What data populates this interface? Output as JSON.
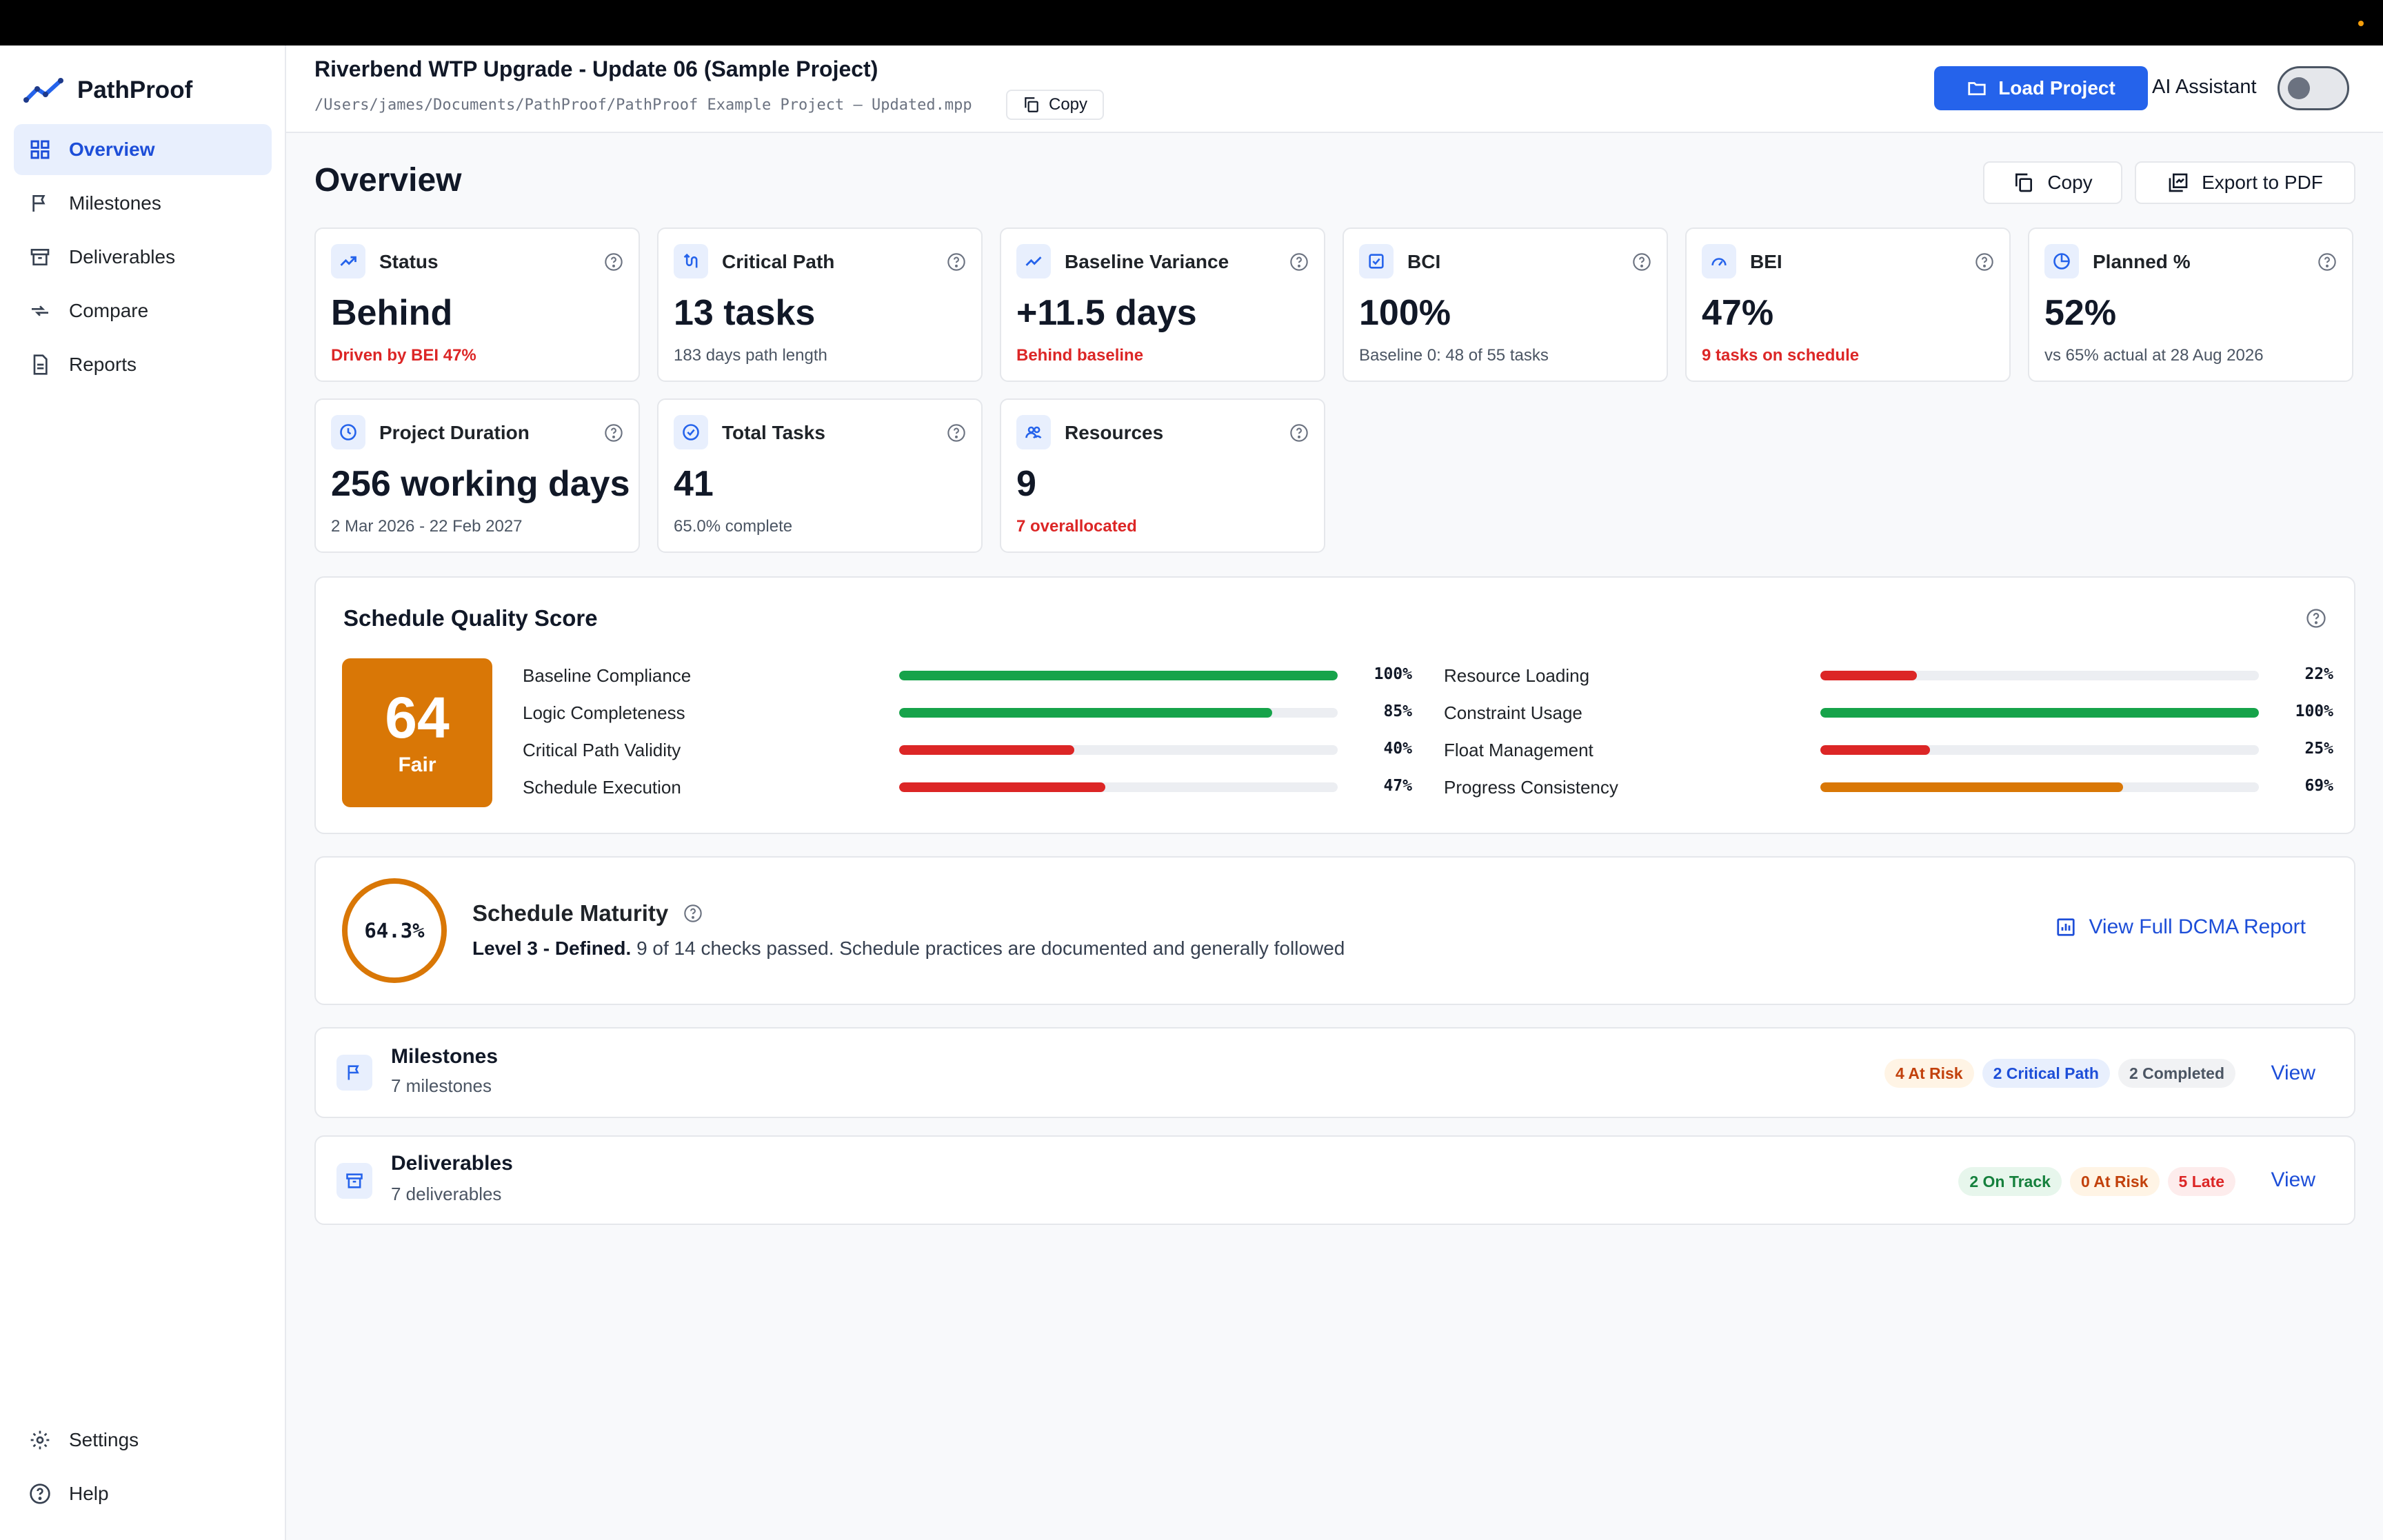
{
  "app": {
    "name": "PathProof"
  },
  "sidebar": {
    "items": [
      {
        "label": "Overview",
        "icon": "grid-icon",
        "active": true
      },
      {
        "label": "Milestones",
        "icon": "flag-icon"
      },
      {
        "label": "Deliverables",
        "icon": "archive-icon"
      },
      {
        "label": "Compare",
        "icon": "compare-icon"
      },
      {
        "label": "Reports",
        "icon": "document-icon"
      }
    ],
    "bottom": [
      {
        "label": "Settings",
        "icon": "gear-icon"
      },
      {
        "label": "Help",
        "icon": "help-icon"
      }
    ]
  },
  "topbar": {
    "project_title": "Riverbend WTP Upgrade - Update 06 (Sample Project)",
    "project_path": "/Users/james/Documents/PathProof/PathProof Example Project – Updated.mpp",
    "copy_label": "Copy",
    "load_label": "Load Project",
    "ai_label": "AI Assistant",
    "ai_enabled": false
  },
  "overview": {
    "title": "Overview",
    "copy_label": "Copy",
    "export_label": "Export to PDF"
  },
  "cards": [
    {
      "label": "Status",
      "value": "Behind",
      "sub": "Driven by BEI 47%",
      "sub_alert": true,
      "icon": "trend-icon"
    },
    {
      "label": "Critical Path",
      "value": "13 tasks",
      "sub": "183 days path length",
      "sub_alert": false,
      "icon": "route-icon"
    },
    {
      "label": "Baseline Variance",
      "value": "+11.5 days",
      "sub": "Behind baseline",
      "sub_alert": true,
      "icon": "trend-icon"
    },
    {
      "label": "BCI",
      "value": "100%",
      "sub": "Baseline 0: 48 of 55 tasks",
      "sub_alert": false,
      "icon": "check-square-icon"
    },
    {
      "label": "BEI",
      "value": "47%",
      "sub": "9 tasks on schedule",
      "sub_alert": true,
      "icon": "gauge-icon"
    },
    {
      "label": "Planned %",
      "value": "52%",
      "sub": "vs 65% actual at 28 Aug 2026",
      "sub_alert": false,
      "icon": "pie-icon"
    },
    {
      "label": "Project Duration",
      "value": "256 working days",
      "sub": "2 Mar 2026 - 22 Feb 2027",
      "sub_alert": false,
      "icon": "clock-icon"
    },
    {
      "label": "Total Tasks",
      "value": "41",
      "sub": "65.0% complete",
      "sub_alert": false,
      "icon": "check-circle-icon"
    },
    {
      "label": "Resources",
      "value": "9",
      "sub": "7 overallocated",
      "sub_alert": true,
      "icon": "users-icon"
    }
  ],
  "quality": {
    "title": "Schedule Quality Score",
    "score": "64",
    "rating": "Fair",
    "metrics": [
      {
        "name": "Baseline Compliance",
        "pct_label": "100%",
        "value": 100,
        "color": "#16a34a"
      },
      {
        "name": "Logic Completeness",
        "pct_label": "85%",
        "value": 85,
        "color": "#16a34a"
      },
      {
        "name": "Critical Path Validity",
        "pct_label": "40%",
        "value": 40,
        "color": "#dc2626"
      },
      {
        "name": "Schedule Execution",
        "pct_label": "47%",
        "value": 47,
        "color": "#dc2626"
      },
      {
        "name": "Resource Loading",
        "pct_label": "22%",
        "value": 22,
        "color": "#dc2626"
      },
      {
        "name": "Constraint Usage",
        "pct_label": "100%",
        "value": 100,
        "color": "#16a34a"
      },
      {
        "name": "Float Management",
        "pct_label": "25%",
        "value": 25,
        "color": "#dc2626"
      },
      {
        "name": "Progress Consistency",
        "pct_label": "69%",
        "value": 69,
        "color": "#d97706"
      }
    ]
  },
  "maturity": {
    "percent": "64.3%",
    "title": "Schedule Maturity",
    "level": "Level 3 - Defined.",
    "description": "9 of 14 checks passed. Schedule practices are documented and generally followed",
    "link_label": "View Full DCMA Report"
  },
  "milestones": {
    "title": "Milestones",
    "sub": "7 milestones",
    "pills": [
      "4 At Risk",
      "2 Critical Path",
      "2 Completed"
    ],
    "view_label": "View"
  },
  "deliverables": {
    "title": "Deliverables",
    "sub": "7 deliverables",
    "pills": [
      "2 On Track",
      "0 At Risk",
      "5 Late"
    ],
    "view_label": "View"
  },
  "colors": {
    "accent": "#2563eb",
    "warning": "#d97706",
    "danger": "#dc2626",
    "success": "#16a34a"
  }
}
